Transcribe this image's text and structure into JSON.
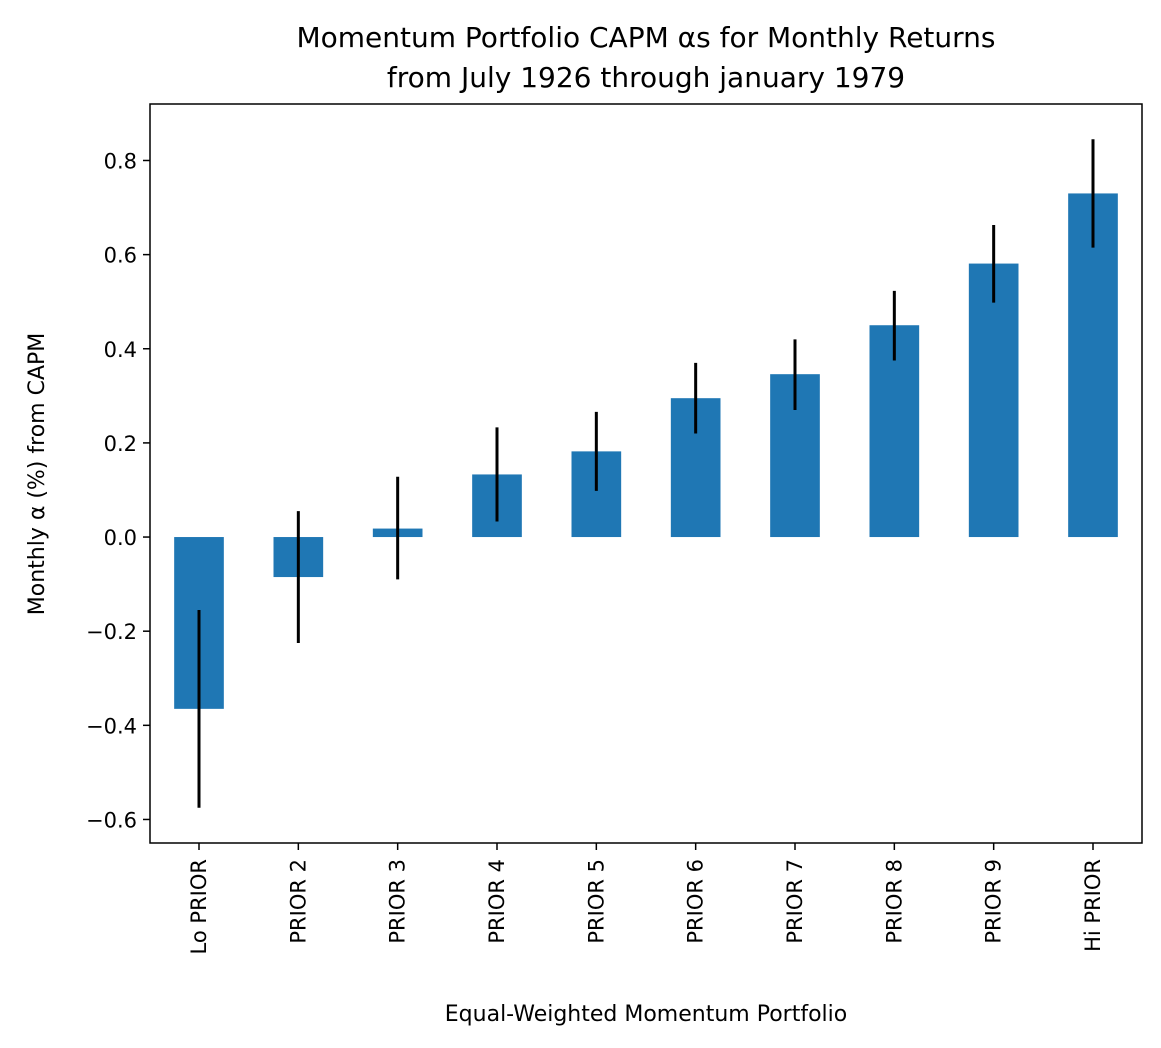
{
  "chart_data": {
    "type": "bar",
    "title": "Momentum Portfolio CAPM αs for Monthly Returns",
    "subtitle": "from July 1926 through january 1979",
    "xlabel": "Equal-Weighted Momentum Portfolio",
    "ylabel": "Monthly α (%) from CAPM",
    "categories": [
      "Lo PRIOR",
      "PRIOR 2",
      "PRIOR 3",
      "PRIOR 4",
      "PRIOR 5",
      "PRIOR 6",
      "PRIOR 7",
      "PRIOR 8",
      "PRIOR 9",
      "Hi PRIOR"
    ],
    "values": [
      -0.365,
      -0.085,
      0.018,
      0.133,
      0.182,
      0.295,
      0.346,
      0.45,
      0.581,
      0.73
    ],
    "error_low": [
      -0.575,
      -0.225,
      -0.09,
      0.033,
      0.098,
      0.22,
      0.27,
      0.375,
      0.498,
      0.615
    ],
    "error_high": [
      -0.155,
      0.055,
      0.128,
      0.233,
      0.266,
      0.37,
      0.42,
      0.523,
      0.663,
      0.845
    ],
    "ylim": [
      -0.65,
      0.92
    ],
    "yticks": [
      -0.6,
      -0.4,
      -0.2,
      0.0,
      0.2,
      0.4,
      0.6,
      0.8
    ],
    "ytick_labels": [
      "−0.6",
      "−0.4",
      "−0.2",
      "0.0",
      "0.2",
      "0.4",
      "0.6",
      "0.8"
    ],
    "grid": false,
    "colors": {
      "bar": "#1f77b4",
      "error_bar": "#000000",
      "axis": "#000000"
    }
  }
}
